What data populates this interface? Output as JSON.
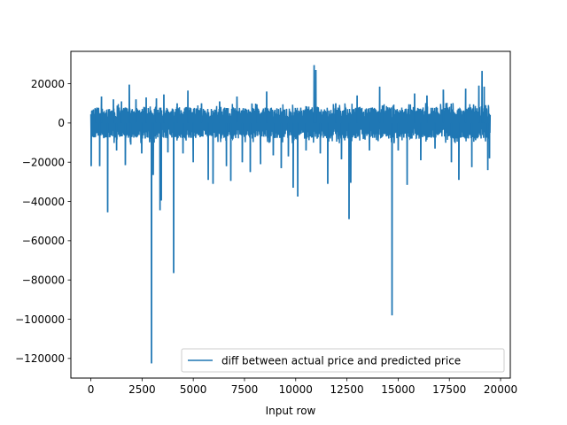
{
  "chart_data": {
    "type": "line",
    "title": "",
    "xlabel": "Input row",
    "ylabel": "",
    "xlim": [
      -975,
      20475
    ],
    "ylim": [
      -130000,
      36500
    ],
    "x_ticks": [
      0,
      2500,
      5000,
      7500,
      10000,
      12500,
      15000,
      17500,
      20000
    ],
    "x_tick_labels": [
      "0",
      "2500",
      "5000",
      "7500",
      "10000",
      "12500",
      "15000",
      "17500",
      "20000"
    ],
    "y_ticks": [
      20000,
      0,
      -20000,
      -40000,
      -60000,
      -80000,
      -100000,
      -120000
    ],
    "y_tick_labels": [
      "20000",
      "0",
      "−20000",
      "−40000",
      "−60000",
      "−80000",
      "−100000",
      "−120000"
    ],
    "grid": false,
    "legend": {
      "position": "lower-right"
    },
    "color": "#1f77b4",
    "series": [
      {
        "name": "diff between actual price and predicted price",
        "x_range": [
          0,
          19500
        ],
        "band": [
          -8000,
          8000
        ],
        "spikes": [
          {
            "x": 10,
            "y": -22000
          },
          {
            "x": 250,
            "y": 7000
          },
          {
            "x": 430,
            "y": -22000
          },
          {
            "x": 520,
            "y": 13500
          },
          {
            "x": 820,
            "y": -45500
          },
          {
            "x": 1100,
            "y": 12000
          },
          {
            "x": 1260,
            "y": -14000
          },
          {
            "x": 1500,
            "y": 11000
          },
          {
            "x": 1680,
            "y": -21500
          },
          {
            "x": 1870,
            "y": 19500
          },
          {
            "x": 1950,
            "y": -11000
          },
          {
            "x": 2200,
            "y": 12000
          },
          {
            "x": 2480,
            "y": -15500
          },
          {
            "x": 2700,
            "y": 13000
          },
          {
            "x": 2960,
            "y": -122500
          },
          {
            "x": 3040,
            "y": -26500
          },
          {
            "x": 3200,
            "y": 12500
          },
          {
            "x": 3380,
            "y": -44500
          },
          {
            "x": 3440,
            "y": -39500
          },
          {
            "x": 3560,
            "y": 14500
          },
          {
            "x": 3760,
            "y": -15000
          },
          {
            "x": 4040,
            "y": -76500
          },
          {
            "x": 4210,
            "y": 10000
          },
          {
            "x": 4500,
            "y": -15500
          },
          {
            "x": 4740,
            "y": 16500
          },
          {
            "x": 5000,
            "y": -20000
          },
          {
            "x": 5400,
            "y": 10000
          },
          {
            "x": 5730,
            "y": -29000
          },
          {
            "x": 5960,
            "y": -31000
          },
          {
            "x": 6280,
            "y": 11000
          },
          {
            "x": 6620,
            "y": -22000
          },
          {
            "x": 6830,
            "y": -29500
          },
          {
            "x": 7130,
            "y": 13500
          },
          {
            "x": 7390,
            "y": -20000
          },
          {
            "x": 7780,
            "y": -25000
          },
          {
            "x": 8100,
            "y": 9500
          },
          {
            "x": 8290,
            "y": -21000
          },
          {
            "x": 8580,
            "y": 16000
          },
          {
            "x": 8900,
            "y": -16500
          },
          {
            "x": 9290,
            "y": -23000
          },
          {
            "x": 9640,
            "y": -17000
          },
          {
            "x": 9870,
            "y": -33000
          },
          {
            "x": 10100,
            "y": -37500
          },
          {
            "x": 10500,
            "y": -14000
          },
          {
            "x": 10900,
            "y": 29500
          },
          {
            "x": 10980,
            "y": 27000
          },
          {
            "x": 11200,
            "y": -15500
          },
          {
            "x": 11560,
            "y": -31000
          },
          {
            "x": 11950,
            "y": 10000
          },
          {
            "x": 12230,
            "y": -18500
          },
          {
            "x": 12600,
            "y": -49000
          },
          {
            "x": 12680,
            "y": -30500
          },
          {
            "x": 13000,
            "y": 14000
          },
          {
            "x": 13600,
            "y": -14000
          },
          {
            "x": 14100,
            "y": 18500
          },
          {
            "x": 14300,
            "y": 9000
          },
          {
            "x": 14700,
            "y": -98000
          },
          {
            "x": 15000,
            "y": -14000
          },
          {
            "x": 15440,
            "y": -31500
          },
          {
            "x": 15800,
            "y": 15000
          },
          {
            "x": 16100,
            "y": -19000
          },
          {
            "x": 16400,
            "y": 14000
          },
          {
            "x": 16800,
            "y": -13000
          },
          {
            "x": 17200,
            "y": 17000
          },
          {
            "x": 17600,
            "y": -20000
          },
          {
            "x": 17960,
            "y": -29000
          },
          {
            "x": 18300,
            "y": 17500
          },
          {
            "x": 18600,
            "y": -22500
          },
          {
            "x": 18940,
            "y": 19000
          },
          {
            "x": 19100,
            "y": 26500
          },
          {
            "x": 19200,
            "y": 18500
          },
          {
            "x": 19380,
            "y": -24000
          },
          {
            "x": 19460,
            "y": -18000
          }
        ]
      }
    ]
  }
}
